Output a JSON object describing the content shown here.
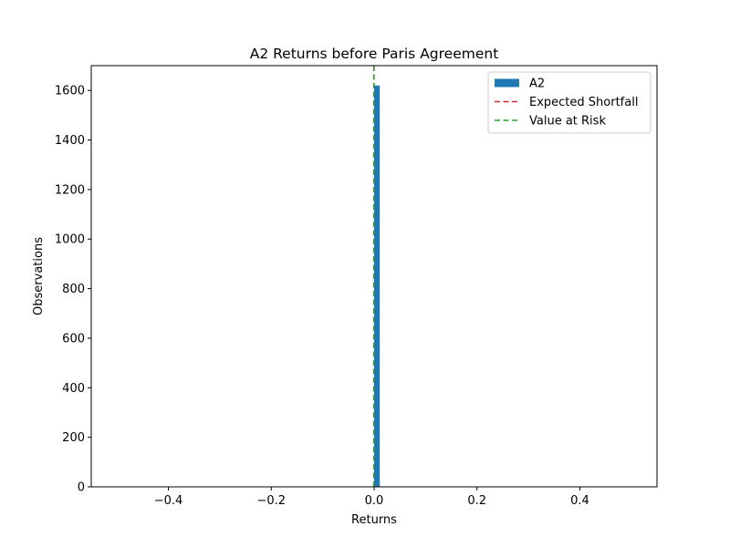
{
  "chart_data": {
    "type": "bar",
    "title": "A2 Returns before Paris Agreement",
    "xlabel": "Returns",
    "ylabel": "Observations",
    "xlim": [
      -0.55,
      0.55
    ],
    "ylim": [
      0,
      1700
    ],
    "x_ticks": [
      -0.4,
      -0.2,
      0.0,
      0.2,
      0.4
    ],
    "x_tick_labels": [
      "−0.4",
      "−0.2",
      "0.0",
      "0.2",
      "0.4"
    ],
    "y_ticks": [
      0,
      200,
      400,
      600,
      800,
      1000,
      1200,
      1400,
      1600
    ],
    "y_tick_labels": [
      "0",
      "200",
      "400",
      "600",
      "800",
      "1000",
      "1200",
      "1400",
      "1600"
    ],
    "grid": false,
    "legend_position": "top-right",
    "series": [
      {
        "name": "A2",
        "kind": "histogram",
        "color": "#1f77b4",
        "bins": [
          {
            "x0": -0.001,
            "x1": 0.0,
            "count": 10
          },
          {
            "x0": 0.0,
            "x1": 0.011,
            "count": 1620
          }
        ]
      },
      {
        "name": "Expected Shortfall",
        "kind": "vline",
        "color": "#d62728",
        "x": -0.0005
      },
      {
        "name": "Value at Risk",
        "kind": "vline",
        "color": "#2ca02c",
        "x": -0.0003
      }
    ]
  }
}
